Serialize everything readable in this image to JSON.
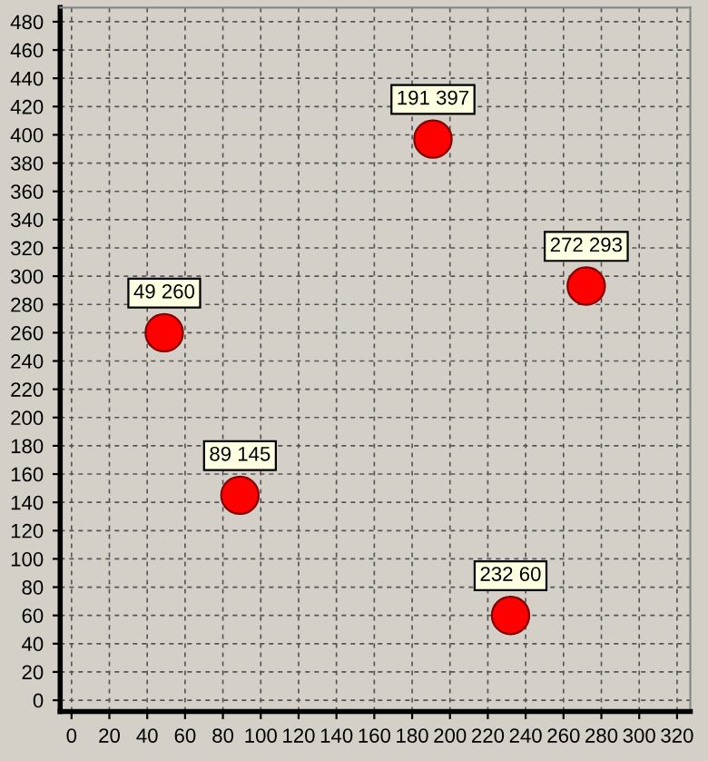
{
  "chart_data": {
    "type": "scatter",
    "x": [
      49,
      89,
      191,
      232,
      272
    ],
    "values": [
      260,
      145,
      397,
      60,
      293
    ],
    "annotations": [
      {
        "text": "49 260",
        "x": 49,
        "y": 260
      },
      {
        "text": "89 145",
        "x": 89,
        "y": 145
      },
      {
        "text": "191 397",
        "x": 191,
        "y": 397
      },
      {
        "text": "232 60",
        "x": 232,
        "y": 60
      },
      {
        "text": "272 293",
        "x": 272,
        "y": 293
      }
    ],
    "color": "#ff0000",
    "marker": "circle",
    "xlim": [
      -6,
      327
    ],
    "ylim": [
      -8,
      490
    ],
    "xticks": [
      0,
      20,
      40,
      60,
      80,
      100,
      120,
      140,
      160,
      180,
      200,
      220,
      240,
      260,
      280,
      300,
      320
    ],
    "yticks": [
      0,
      20,
      40,
      60,
      80,
      100,
      120,
      140,
      160,
      180,
      200,
      220,
      240,
      260,
      280,
      300,
      320,
      340,
      360,
      380,
      400,
      420,
      440,
      460,
      480
    ],
    "grid": true
  }
}
